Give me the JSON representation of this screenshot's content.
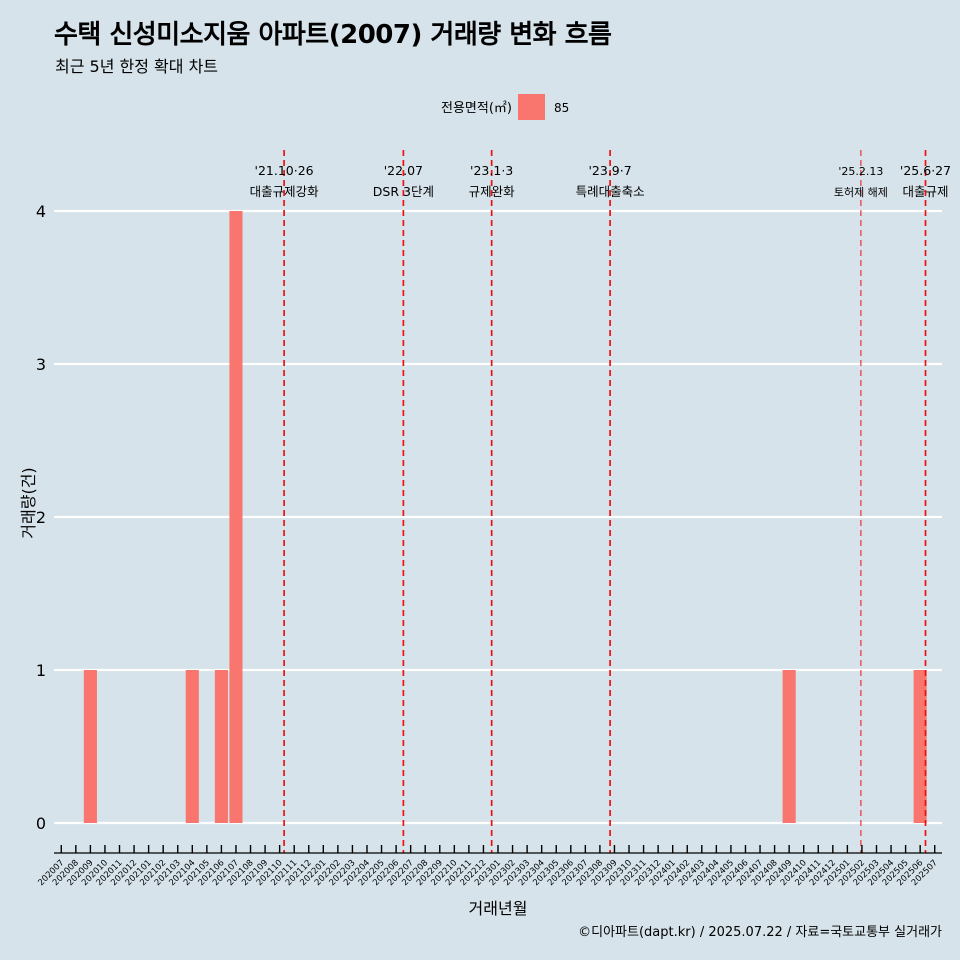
{
  "title": "수택 신성미소지움 아파트(2007) 거래량 변화 흐름",
  "subtitle": "최근 5년 한정 확대 차트",
  "caption": "©디아파트(dapt.kr) / 2025.07.22 / 자료=국토교통부 실거래가",
  "colors": {
    "background": "#d6e3ea",
    "bar": "#f8766d",
    "event_line": "#ee1111",
    "grid": "#ffffff"
  },
  "chart_data": {
    "type": "bar",
    "xlabel": "거래년월",
    "ylabel": "거래량(건)",
    "ylim": [
      0,
      4
    ],
    "yticks": [
      0,
      1,
      2,
      3,
      4
    ],
    "legend": {
      "title": "전용면적(㎡)",
      "entries": [
        "85"
      ],
      "position": "top"
    },
    "categories": [
      "202007",
      "202008",
      "202009",
      "202010",
      "202011",
      "202012",
      "202101",
      "202102",
      "202103",
      "202104",
      "202105",
      "202106",
      "202107",
      "202108",
      "202109",
      "202110",
      "202111",
      "202112",
      "202201",
      "202202",
      "202203",
      "202204",
      "202205",
      "202206",
      "202207",
      "202208",
      "202209",
      "202210",
      "202211",
      "202212",
      "202301",
      "202302",
      "202303",
      "202304",
      "202305",
      "202306",
      "202307",
      "202308",
      "202309",
      "202310",
      "202311",
      "202312",
      "202401",
      "202402",
      "202403",
      "202404",
      "202405",
      "202406",
      "202407",
      "202408",
      "202409",
      "202410",
      "202411",
      "202412",
      "202501",
      "202502",
      "202503",
      "202504",
      "202505",
      "202506",
      "202507"
    ],
    "series": [
      {
        "name": "85",
        "values": [
          0,
          0,
          1,
          0,
          0,
          0,
          0,
          0,
          0,
          1,
          0,
          1,
          4,
          0,
          0,
          0,
          0,
          0,
          0,
          0,
          0,
          0,
          0,
          0,
          0,
          0,
          0,
          0,
          0,
          0,
          0,
          0,
          0,
          0,
          0,
          0,
          0,
          0,
          0,
          0,
          0,
          0,
          0,
          0,
          0,
          0,
          0,
          0,
          0,
          0,
          1,
          0,
          0,
          0,
          0,
          0,
          0,
          0,
          0,
          1,
          0
        ]
      }
    ],
    "events": [
      {
        "date_label": "'21.10·26",
        "label": "대출규제강화",
        "at": "2021-10-26",
        "style": "bold"
      },
      {
        "date_label": "'22.07",
        "label": "DSR 3단계",
        "at": "2022-07-01",
        "style": "bold"
      },
      {
        "date_label": "'23.1·3",
        "label": "규제완화",
        "at": "2023-01-03",
        "style": "bold"
      },
      {
        "date_label": "'23.9·7",
        "label": "특례대출축소",
        "at": "2023-09-07",
        "style": "bold"
      },
      {
        "date_label": "'25.2.13",
        "label": "토허제 해제",
        "at": "2025-02-13",
        "style": "thin"
      },
      {
        "date_label": "'25.6·27",
        "label": "대출규제",
        "at": "2025-06-27",
        "style": "bold"
      }
    ]
  }
}
